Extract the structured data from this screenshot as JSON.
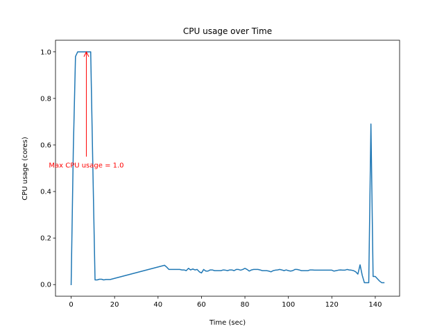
{
  "chart_data": {
    "type": "line",
    "title": "CPU usage over Time",
    "xlabel": "Time (sec)",
    "ylabel": "CPU usage (cores)",
    "xlim": [
      -7.2,
      151.2
    ],
    "ylim": [
      -0.05,
      1.05
    ],
    "xticks": [
      0,
      20,
      40,
      60,
      80,
      100,
      120,
      140
    ],
    "yticks": [
      0.0,
      0.2,
      0.4,
      0.6,
      0.8,
      1.0
    ],
    "xtick_labels": [
      "0",
      "20",
      "40",
      "60",
      "80",
      "100",
      "120",
      "140"
    ],
    "ytick_labels": [
      "0.0",
      "0.2",
      "0.4",
      "0.6",
      "0.8",
      "1.0"
    ],
    "grid": false,
    "series": [
      {
        "color": "#1f77b4",
        "x": [
          0,
          1,
          2,
          3,
          4,
          5,
          6,
          7,
          8,
          9,
          10,
          11,
          12,
          13,
          14,
          15,
          16,
          17,
          18,
          43,
          44,
          45,
          46,
          47,
          48,
          49,
          50,
          51,
          52,
          53,
          54,
          55,
          56,
          57,
          58,
          59,
          60,
          61,
          62,
          63,
          64,
          65,
          66,
          67,
          68,
          69,
          70,
          71,
          72,
          73,
          74,
          75,
          76,
          77,
          78,
          79,
          80,
          81,
          82,
          83,
          84,
          85,
          86,
          87,
          88,
          89,
          90,
          91,
          92,
          93,
          94,
          95,
          96,
          97,
          98,
          99,
          100,
          101,
          102,
          103,
          104,
          105,
          106,
          107,
          108,
          109,
          110,
          111,
          112,
          113,
          114,
          115,
          116,
          117,
          118,
          119,
          120,
          121,
          122,
          123,
          124,
          125,
          126,
          127,
          128,
          129,
          130,
          131,
          132,
          133,
          134,
          135,
          136,
          137,
          138,
          139,
          140,
          141,
          142,
          143,
          144
        ],
        "values": [
          0.0,
          0.58,
          0.98,
          1.0,
          1.0,
          1.0,
          1.0,
          1.0,
          1.0,
          1.0,
          0.5,
          0.02,
          0.02,
          0.023,
          0.023,
          0.02,
          0.022,
          0.022,
          0.022,
          0.083,
          0.075,
          0.065,
          0.065,
          0.065,
          0.065,
          0.065,
          0.065,
          0.063,
          0.063,
          0.06,
          0.07,
          0.063,
          0.067,
          0.063,
          0.065,
          0.055,
          0.05,
          0.065,
          0.058,
          0.058,
          0.063,
          0.063,
          0.06,
          0.06,
          0.06,
          0.06,
          0.063,
          0.062,
          0.06,
          0.063,
          0.063,
          0.06,
          0.065,
          0.065,
          0.062,
          0.065,
          0.07,
          0.065,
          0.058,
          0.063,
          0.065,
          0.065,
          0.065,
          0.063,
          0.06,
          0.06,
          0.06,
          0.058,
          0.055,
          0.06,
          0.062,
          0.063,
          0.065,
          0.063,
          0.06,
          0.063,
          0.06,
          0.058,
          0.06,
          0.065,
          0.065,
          0.063,
          0.06,
          0.06,
          0.06,
          0.06,
          0.063,
          0.063,
          0.062,
          0.062,
          0.062,
          0.062,
          0.062,
          0.062,
          0.062,
          0.062,
          0.062,
          0.058,
          0.06,
          0.062,
          0.063,
          0.062,
          0.062,
          0.065,
          0.063,
          0.062,
          0.06,
          0.055,
          0.045,
          0.085,
          0.04,
          0.008,
          0.008,
          0.008,
          0.69,
          0.035,
          0.035,
          0.025,
          0.015,
          0.008,
          0.008
        ]
      }
    ],
    "annotation": {
      "text": "Max CPU usage = 1.0",
      "color": "#ff0000",
      "xy": [
        7,
        1.0
      ],
      "xytext": [
        7,
        0.55
      ]
    }
  }
}
